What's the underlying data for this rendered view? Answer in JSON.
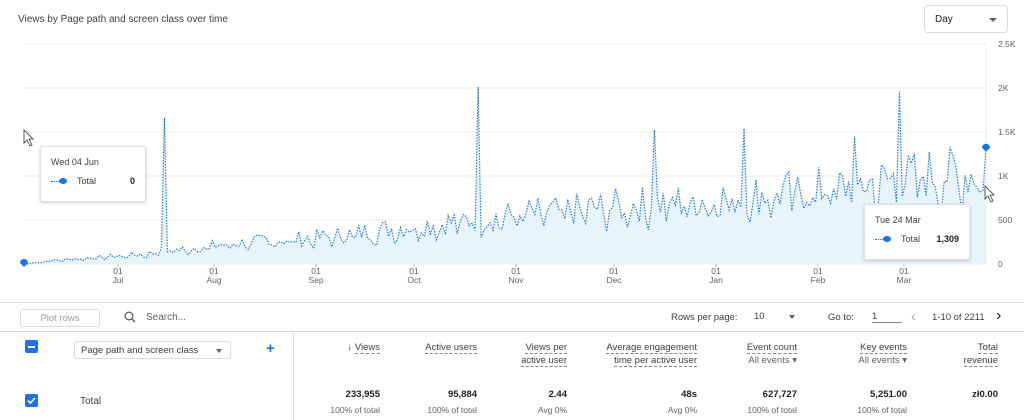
{
  "chart_title": "Views by Page path and screen class over time",
  "date_granularity": {
    "selected": "Day"
  },
  "chart_data": {
    "type": "line",
    "series": [
      {
        "name": "Total",
        "color": "#1a73e8"
      }
    ],
    "x_ticks": [
      {
        "day": "01",
        "month": "Jul"
      },
      {
        "day": "01",
        "month": "Aug"
      },
      {
        "day": "01",
        "month": "Sep"
      },
      {
        "day": "01",
        "month": "Oct"
      },
      {
        "day": "01",
        "month": "Nov"
      },
      {
        "day": "01",
        "month": "Dec"
      },
      {
        "day": "01",
        "month": "Jan"
      },
      {
        "day": "01",
        "month": "Feb"
      },
      {
        "day": "01",
        "month": "Mar"
      }
    ],
    "y_ticks": [
      "2.5K",
      "2K",
      "1.5K",
      "1K",
      "500",
      "0"
    ],
    "ylim": [
      0,
      2500
    ],
    "trend_points": [
      [
        0,
        0
      ],
      [
        10,
        40
      ],
      [
        40,
        110
      ],
      [
        70,
        230
      ],
      [
        100,
        300
      ],
      [
        130,
        420
      ],
      [
        160,
        530
      ],
      [
        190,
        620
      ],
      [
        220,
        700
      ],
      [
        250,
        780
      ],
      [
        280,
        880
      ],
      [
        300,
        980
      ],
      [
        301,
        1000
      ]
    ],
    "spikes": [
      [
        47,
        1660
      ],
      [
        152,
        2010
      ],
      [
        211,
        1520
      ],
      [
        241,
        1540
      ],
      [
        278,
        1450
      ],
      [
        293,
        1960
      ]
    ],
    "values": [
      0,
      0,
      0,
      0,
      0,
      0,
      0,
      0,
      0,
      0,
      0,
      0,
      0,
      0,
      0,
      0,
      0,
      0,
      0,
      0,
      0,
      0,
      0,
      0,
      0,
      0,
      0,
      0,
      0,
      0,
      0,
      0,
      0,
      0,
      0,
      0,
      0,
      0,
      0,
      0,
      0,
      0,
      0,
      0,
      0,
      0,
      0,
      0,
      0,
      0,
      0,
      0,
      0,
      0,
      0,
      0,
      0,
      0,
      0,
      0,
      0,
      0,
      0,
      0,
      0,
      0,
      0,
      0,
      0,
      0,
      0,
      0,
      0,
      0,
      0,
      0,
      0,
      0,
      0,
      0,
      0,
      0,
      0,
      0,
      0,
      0,
      0,
      0,
      0,
      0,
      0,
      0,
      0,
      0,
      0,
      0,
      0,
      0,
      0,
      0,
      0,
      0,
      0,
      0,
      0,
      0,
      0,
      0,
      0,
      0,
      0,
      0,
      0,
      0,
      0,
      0,
      0,
      0,
      0,
      0,
      0,
      0,
      0,
      0,
      0,
      0,
      0,
      0,
      0,
      0,
      0,
      0,
      0,
      0,
      0,
      0,
      0,
      0,
      0,
      0,
      0,
      0,
      0,
      0,
      0,
      0,
      0,
      0,
      0,
      0,
      0,
      0,
      0,
      0,
      0,
      0,
      0,
      0,
      0,
      0,
      0,
      0,
      0,
      0,
      0,
      0,
      0,
      0,
      0,
      0,
      0,
      0,
      0,
      0,
      0,
      0,
      0,
      0,
      0,
      0,
      0,
      0,
      0,
      0,
      0,
      0,
      0,
      0,
      0,
      0,
      0,
      0,
      0,
      0,
      0,
      0,
      0,
      0,
      0,
      0,
      0,
      0,
      0,
      0,
      0,
      0,
      0,
      0,
      0,
      0,
      0,
      0,
      0,
      0,
      0,
      0,
      0,
      0,
      0,
      0,
      0,
      0,
      0,
      0,
      0,
      0,
      0,
      0,
      0,
      0,
      0,
      0,
      0,
      0,
      0,
      0,
      0,
      0,
      0,
      0,
      0,
      0,
      0,
      0,
      0,
      0,
      0,
      0,
      0,
      0,
      0,
      0,
      0,
      0,
      0,
      0,
      0,
      0,
      0,
      0,
      0,
      0,
      0,
      0,
      0,
      0,
      0,
      0,
      0,
      0,
      0,
      0,
      0,
      0,
      0,
      0,
      0,
      0,
      0,
      0,
      0,
      0,
      0,
      0,
      0,
      0,
      0,
      0,
      0,
      0,
      0,
      0,
      0,
      0,
      0,
      0,
      0,
      0,
      0,
      0,
      0,
      0,
      0,
      0,
      0,
      0,
      0,
      0,
      0,
      0,
      0,
      0,
      0,
      0,
      0,
      0,
      0,
      0,
      0,
      0,
      0,
      0,
      0
    ],
    "tooltip_start": {
      "date": "Wed 04 Jun",
      "label": "Total",
      "value": "0"
    },
    "tooltip_end": {
      "date": "Tue 24 Mar",
      "label": "Total",
      "value": "1,309"
    }
  },
  "toolbar": {
    "plot_rows": "Plot rows",
    "search_placeholder": "Search...",
    "rows_per_page_label": "Rows per page:",
    "rows_per_page_value": "10",
    "go_to_label": "Go to:",
    "go_to_value": "1",
    "range": "1-10 of 2211"
  },
  "table": {
    "dimension": "Page path and screen class",
    "headers": [
      {
        "l1": "Views",
        "l2": "",
        "sort": "↓"
      },
      {
        "l1": "Active users",
        "l2": ""
      },
      {
        "l1": "Views per",
        "l2": "active user"
      },
      {
        "l1": "Average engagement",
        "l2": "time per active user"
      },
      {
        "l1": "Event count",
        "l2": "All events"
      },
      {
        "l1": "Key events",
        "l2": "All events"
      },
      {
        "l1": "Total",
        "l2": "revenue"
      }
    ],
    "total_row": {
      "label": "Total",
      "values": [
        "233,955",
        "95,884",
        "2.44",
        "48s",
        "627,727",
        "5,251.00",
        "zł0.00"
      ],
      "sub": [
        "100% of total",
        "100% of total",
        "Avg 0%",
        "Avg 0%",
        "100% of total",
        "100% of total",
        ""
      ]
    }
  }
}
